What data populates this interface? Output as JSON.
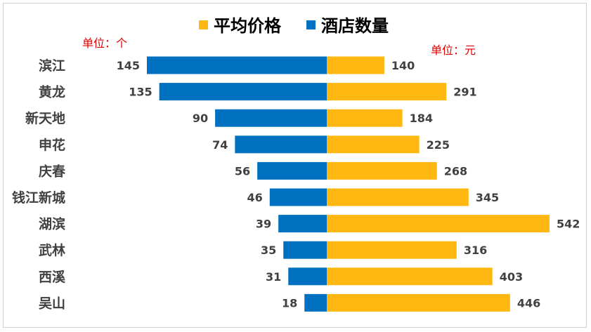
{
  "chart_data": {
    "type": "bar",
    "orientation": "horizontal",
    "layout": "butterfly",
    "categories": [
      "滨江",
      "黄龙",
      "新天地",
      "申花",
      "庆春",
      "钱江新城",
      "湖滨",
      "武林",
      "西溪",
      "吴山"
    ],
    "series": [
      {
        "name": "平均价格",
        "color": "#FFB711",
        "side": "right",
        "unit_label": "单位：元",
        "values": [
          140,
          291,
          184,
          225,
          268,
          345,
          542,
          316,
          403,
          446
        ]
      },
      {
        "name": "酒店数量",
        "color": "#0070C0",
        "side": "left",
        "unit_label": "单位：个",
        "values": [
          145,
          135,
          90,
          74,
          56,
          46,
          39,
          35,
          31,
          18
        ]
      }
    ],
    "legend_position": "top",
    "grid": false
  }
}
